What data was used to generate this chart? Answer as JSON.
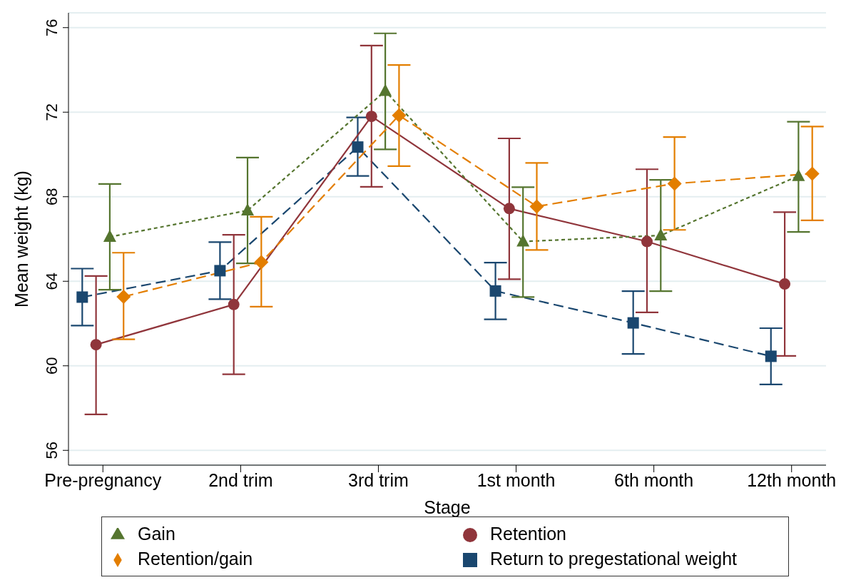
{
  "chart_data": {
    "type": "line",
    "xlabel": "Stage",
    "ylabel": "Mean weight (kg)",
    "categories": [
      "Pre-pregnancy",
      "2nd trim",
      "3rd trim",
      "1st month",
      "6th month",
      "12th month"
    ],
    "ylim": [
      55.3,
      76.7
    ],
    "yticks": [
      56,
      60,
      64,
      68,
      72,
      76
    ],
    "grid": "y",
    "legend": "bottom",
    "series": [
      {
        "name": "Return to pregestational weight",
        "color": "#1a476f",
        "marker": "square",
        "line_style": "dashed",
        "values": [
          63.25,
          64.5,
          70.35,
          63.54,
          62.03,
          60.45
        ],
        "errors": [
          [
            61.9,
            64.6
          ],
          [
            63.15,
            65.85
          ],
          [
            68.98,
            71.75
          ],
          [
            62.2,
            64.88
          ],
          [
            60.56,
            63.53
          ],
          [
            59.12,
            61.78
          ]
        ]
      },
      {
        "name": "Retention",
        "color": "#90353b",
        "marker": "circle",
        "line_style": "solid",
        "values": [
          61.0,
          62.9,
          71.8,
          67.44,
          65.88,
          63.87
        ],
        "errors": [
          [
            57.7,
            64.25
          ],
          [
            59.6,
            66.2
          ],
          [
            68.47,
            75.15
          ],
          [
            64.1,
            70.76
          ],
          [
            62.53,
            69.3
          ],
          [
            60.47,
            67.27
          ]
        ]
      },
      {
        "name": "Gain",
        "color": "#55752f",
        "marker": "triangle",
        "line_style": "dotted",
        "values": [
          66.1,
          67.35,
          73.0,
          65.88,
          66.17,
          68.98
        ],
        "errors": [
          [
            63.6,
            68.6
          ],
          [
            64.85,
            69.85
          ],
          [
            70.24,
            75.73
          ],
          [
            63.25,
            68.45
          ],
          [
            63.53,
            68.8
          ],
          [
            66.33,
            71.55
          ]
        ]
      },
      {
        "name": "Retention/gain",
        "color": "#e37e00",
        "marker": "diamond",
        "line_style": "dashed",
        "values": [
          63.27,
          64.9,
          71.85,
          67.54,
          68.62,
          69.09
        ],
        "errors": [
          [
            61.25,
            65.35
          ],
          [
            62.8,
            67.05
          ],
          [
            69.45,
            74.23
          ],
          [
            65.48,
            69.6
          ],
          [
            66.43,
            70.82
          ],
          [
            66.88,
            71.32
          ]
        ]
      }
    ]
  }
}
